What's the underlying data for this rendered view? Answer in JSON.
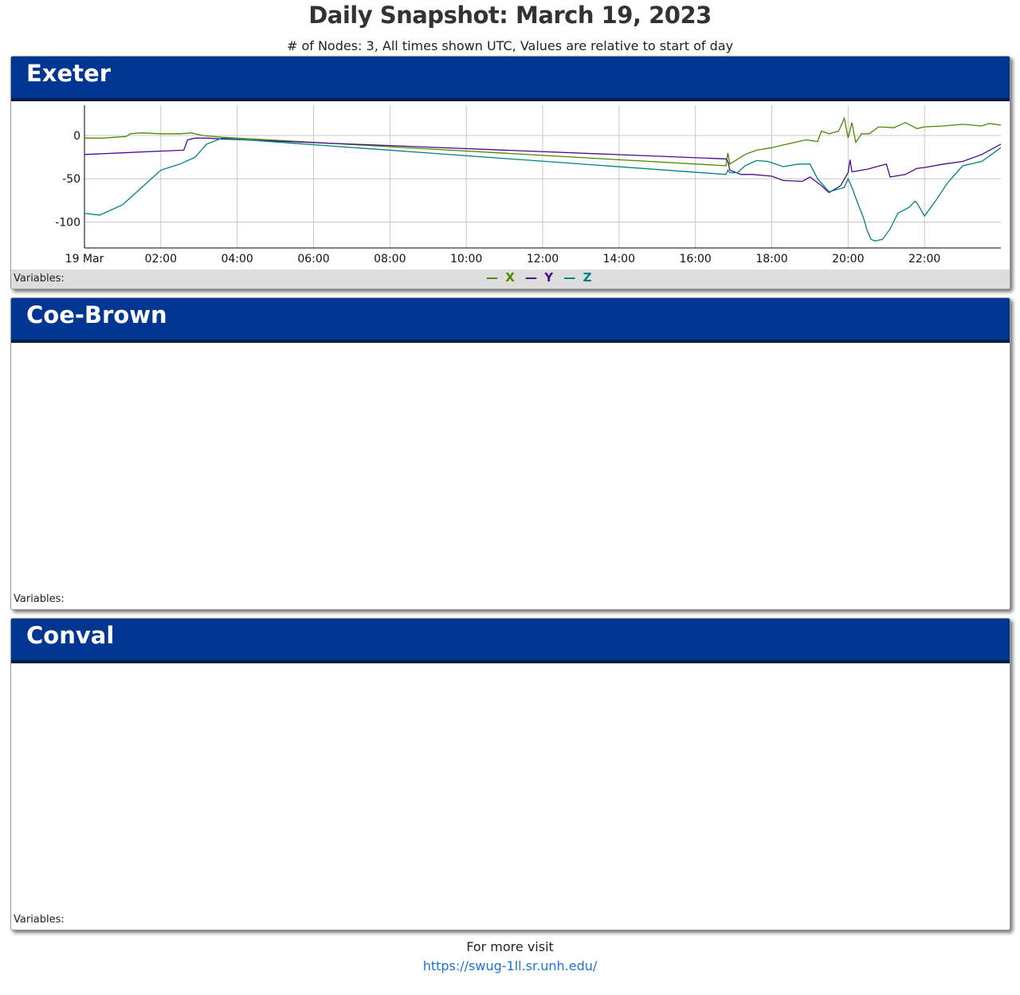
{
  "page": {
    "title": "Daily Snapshot: March 19, 2023",
    "subtitle": "# of Nodes: 3, All times shown UTC, Values are relative to start of day"
  },
  "panels": [
    {
      "title": "Exeter",
      "variables_label": "Variables:"
    },
    {
      "title": "Coe-Brown",
      "variables_label": "Variables:"
    },
    {
      "title": "Conval",
      "variables_label": "Variables:"
    }
  ],
  "legend": [
    {
      "name": "X",
      "symbol": "—",
      "color": "#4a8a00"
    },
    {
      "name": "Y",
      "symbol": "—",
      "color": "#4a0a8a"
    },
    {
      "name": "Z",
      "symbol": "—",
      "color": "#008080"
    }
  ],
  "footer": {
    "text": "For more visit",
    "link": "https://swug-1ll.sr.unh.edu/"
  },
  "chart_data": {
    "type": "line",
    "title": "",
    "xlabel": "",
    "ylabel": "",
    "x_unit": "hours UTC, 19 Mar 2023",
    "xlim": [
      0,
      24
    ],
    "ylim": [
      -130,
      35
    ],
    "y_ticks": [
      0,
      -50,
      -100
    ],
    "x_ticks": [
      {
        "x": 0,
        "label": "19 Mar"
      },
      {
        "x": 2,
        "label": "02:00"
      },
      {
        "x": 4,
        "label": "04:00"
      },
      {
        "x": 6,
        "label": "06:00"
      },
      {
        "x": 8,
        "label": "08:00"
      },
      {
        "x": 10,
        "label": "10:00"
      },
      {
        "x": 12,
        "label": "12:00"
      },
      {
        "x": 14,
        "label": "14:00"
      },
      {
        "x": 16,
        "label": "16:00"
      },
      {
        "x": 18,
        "label": "18:00"
      },
      {
        "x": 20,
        "label": "20:00"
      },
      {
        "x": 22,
        "label": "22:00"
      }
    ],
    "grid": true,
    "legend_position": "bottom-center",
    "series": [
      {
        "name": "X",
        "color": "#4a8a00",
        "x": [
          0,
          0.5,
          1.1,
          1.2,
          1.5,
          2,
          2.5,
          2.8,
          3.1,
          3.6,
          16.8,
          16.85,
          16.9,
          17.3,
          17.6,
          18.0,
          18.4,
          18.9,
          19.2,
          19.3,
          19.5,
          19.75,
          19.9,
          20.0,
          20.1,
          20.2,
          20.35,
          20.55,
          20.8,
          21.2,
          21.5,
          21.8,
          22.0,
          22.5,
          23.0,
          23.5,
          23.7,
          24.0
        ],
        "y": [
          -3,
          -3,
          -1,
          2,
          3,
          2,
          2,
          3,
          0,
          -2,
          -35,
          -20,
          -33,
          -22,
          -17,
          -14,
          -10,
          -5,
          -7,
          5,
          2,
          5,
          20,
          -3,
          15,
          -8,
          2,
          2,
          10,
          9,
          15,
          8,
          10,
          11,
          13,
          11,
          14,
          12
        ]
      },
      {
        "name": "Y",
        "color": "#4a0a8a",
        "x": [
          0,
          1,
          2,
          2.6,
          2.7,
          2.9,
          3.2,
          3.6,
          16.8,
          16.85,
          16.9,
          17.2,
          17.5,
          18.0,
          18.3,
          18.8,
          19.0,
          19.3,
          19.5,
          19.8,
          20.0,
          20.05,
          20.1,
          20.5,
          21.0,
          21.1,
          21.5,
          21.8,
          22.0,
          22.5,
          23.0,
          23.5,
          24.0
        ],
        "y": [
          -22,
          -20,
          -18,
          -17,
          -5,
          -3,
          -3,
          -4,
          -27,
          -30,
          -40,
          -45,
          -45,
          -47,
          -52,
          -53,
          -48,
          -58,
          -66,
          -58,
          -43,
          -28,
          -42,
          -39,
          -33,
          -48,
          -45,
          -38,
          -37,
          -33,
          -30,
          -22,
          -10
        ]
      },
      {
        "name": "Z",
        "color": "#008080",
        "x": [
          0,
          0.4,
          1.0,
          1.5,
          2.0,
          2.5,
          2.9,
          3.2,
          3.6,
          16.8,
          16.85,
          16.9,
          17.1,
          17.3,
          17.6,
          17.9,
          18.3,
          18.7,
          19.0,
          19.2,
          19.5,
          19.9,
          20.0,
          20.1,
          20.25,
          20.4,
          20.5,
          20.6,
          20.7,
          20.9,
          21.1,
          21.3,
          21.6,
          21.75,
          21.8,
          22.0,
          22.3,
          22.6,
          23.0,
          23.5,
          24.0
        ],
        "y": [
          -90,
          -92,
          -80,
          -60,
          -40,
          -33,
          -25,
          -10,
          -3,
          -45,
          -40,
          -43,
          -43,
          -35,
          -29,
          -30,
          -36,
          -33,
          -33,
          -50,
          -65,
          -60,
          -50,
          -60,
          -78,
          -95,
          -110,
          -120,
          -122,
          -120,
          -108,
          -90,
          -83,
          -76,
          -78,
          -93,
          -75,
          -55,
          -35,
          -30,
          -14
        ]
      }
    ]
  }
}
